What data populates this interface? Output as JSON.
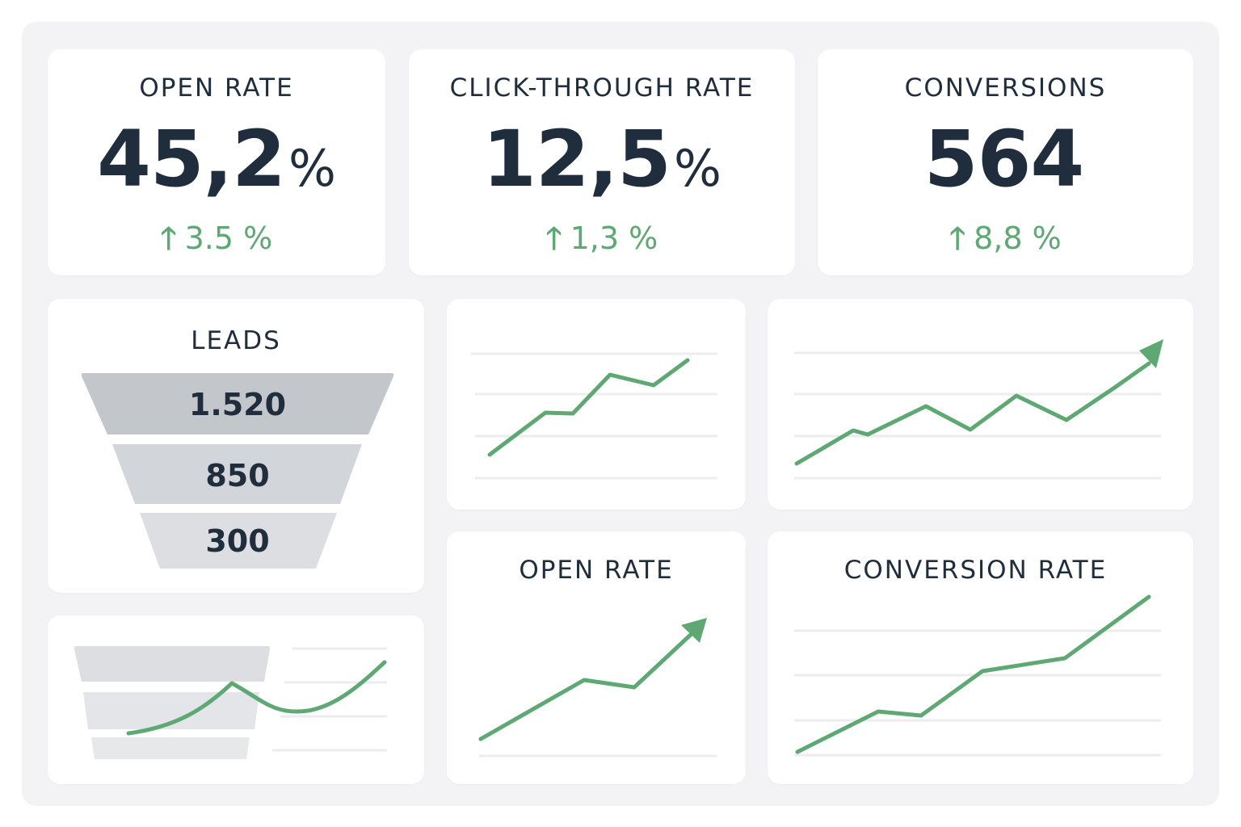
{
  "kpis": [
    {
      "title": "OPEN RATE",
      "value": "45,2",
      "unit": "%",
      "delta": "3.5 %"
    },
    {
      "title": "CLICK-THROUGH RATE",
      "value": "12,5",
      "unit": "%",
      "delta": "1,3 %"
    },
    {
      "title": "CONVERSIONS",
      "value": "564",
      "unit": "",
      "delta": "8,8 %"
    }
  ],
  "leads": {
    "title": "LEADS",
    "stages": [
      "1.520",
      "850",
      "300"
    ]
  },
  "panels": {
    "open_rate_title": "OPEN RATE",
    "conversion_rate_title": "CONVERSION RATE"
  },
  "colors": {
    "accent_green": "#5ea874",
    "text_dark": "#1f2d3d",
    "funnel_top": "#c3c6ca",
    "funnel_mid": "#d2d5d9",
    "funnel_bottom": "#dcdee1",
    "gridline": "#ececee"
  },
  "icons": {
    "delta": "arrow-up-icon"
  }
}
